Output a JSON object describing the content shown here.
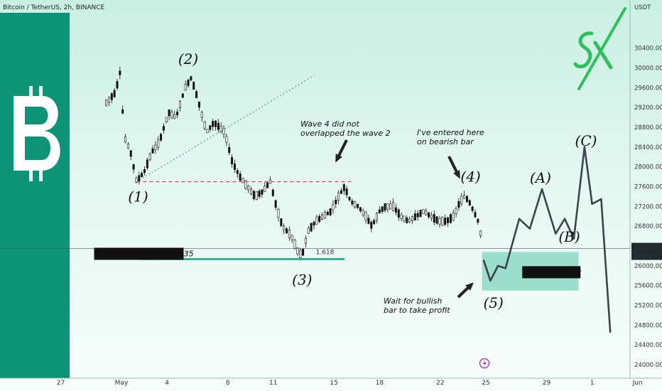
{
  "header": {
    "symbol": "Bitcoin / TetherUS, 2h, BINANCE"
  },
  "price_panel": {
    "currency": "USDT",
    "last_price": "26349.52",
    "countdown": "26:54"
  },
  "colors": {
    "brand_green": "#0d9375",
    "candle": "#111111",
    "wave_line": "#3b4448",
    "target_line": "#14a38a",
    "target_box": "#7ed6be",
    "dashed_red": "#e0454f",
    "logo_green": "#2ec15a"
  },
  "icons": {
    "sidebar": "bitcoin-logo-icon",
    "logo": "sx-logo-icon",
    "event": "lightning-icon"
  },
  "annotations": {
    "wave4_note": [
      "Wave 4 did not",
      "overlapped the wave 2"
    ],
    "entry_note": [
      "I've entered here",
      "on bearish bar"
    ],
    "profit_note": [
      "Wait for bullish",
      "bar to take profit"
    ],
    "wave3_target": "Wave 3 target = $26135",
    "wave5_target": "Wave 5 target",
    "fib_level": "1.618"
  },
  "chart_data": {
    "type": "candlestick",
    "ylim": [
      23900,
      31000
    ],
    "yticks": [
      24000,
      24400,
      24800,
      25200,
      25600,
      26000,
      26400,
      26800,
      27200,
      27600,
      28000,
      28400,
      28800,
      29200,
      29600,
      30000,
      30400
    ],
    "ytick_labels": [
      "24000.00",
      "24400.00",
      "24800.00",
      "25200.00",
      "25600.00",
      "26000.00",
      "26400.00",
      "26800.00",
      "27200.00",
      "27600.00",
      "28000.00",
      "28400.00",
      "28800.00",
      "29200.00",
      "29600.00",
      "30000.00",
      "30400.00"
    ],
    "xlim": [
      -4,
      37.5
    ],
    "xticks": [
      {
        "x": 0,
        "label": "27"
      },
      {
        "x": 4,
        "label": "May"
      },
      {
        "x": 7,
        "label": "4"
      },
      {
        "x": 11,
        "label": "8"
      },
      {
        "x": 14,
        "label": "11"
      },
      {
        "x": 18,
        "label": "15"
      },
      {
        "x": 21,
        "label": "18"
      },
      {
        "x": 25,
        "label": "22"
      },
      {
        "x": 28,
        "label": "25"
      },
      {
        "x": 32,
        "label": "29"
      },
      {
        "x": 35,
        "label": "1"
      },
      {
        "x": 38,
        "label": "Jun"
      }
    ],
    "price_path": [
      [
        3,
        29300
      ],
      [
        3.6,
        29500
      ],
      [
        3.9,
        29900
      ],
      [
        4.2,
        28600
      ],
      [
        4.6,
        28300
      ],
      [
        5,
        27700
      ],
      [
        5.5,
        27900
      ],
      [
        6,
        28300
      ],
      [
        6.5,
        28500
      ],
      [
        7.1,
        29100
      ],
      [
        7.6,
        29000
      ],
      [
        8.2,
        29600
      ],
      [
        8.6,
        29800
      ],
      [
        9,
        29400
      ],
      [
        9.6,
        28700
      ],
      [
        10.1,
        28900
      ],
      [
        10.8,
        28700
      ],
      [
        11.3,
        28100
      ],
      [
        11.8,
        27800
      ],
      [
        12.3,
        27600
      ],
      [
        12.8,
        27400
      ],
      [
        13.3,
        27500
      ],
      [
        13.8,
        27700
      ],
      [
        14.2,
        27200
      ],
      [
        14.6,
        26800
      ],
      [
        15.2,
        26600
      ],
      [
        15.6,
        26300
      ],
      [
        15.9,
        26200
      ],
      [
        16.3,
        26700
      ],
      [
        16.8,
        26900
      ],
      [
        17.3,
        27000
      ],
      [
        17.8,
        27100
      ],
      [
        18.3,
        27400
      ],
      [
        18.7,
        27600
      ],
      [
        19.1,
        27300
      ],
      [
        19.6,
        27200
      ],
      [
        20.1,
        27000
      ],
      [
        20.5,
        26800
      ],
      [
        21,
        27100
      ],
      [
        21.4,
        27200
      ],
      [
        21.9,
        27200
      ],
      [
        22.4,
        27000
      ],
      [
        22.9,
        26900
      ],
      [
        23.4,
        27000
      ],
      [
        23.9,
        27100
      ],
      [
        24.4,
        27000
      ],
      [
        24.9,
        26900
      ],
      [
        25.4,
        26900
      ],
      [
        25.9,
        27000
      ],
      [
        26.3,
        27300
      ],
      [
        26.6,
        27400
      ],
      [
        26.9,
        27300
      ],
      [
        27.2,
        27100
      ],
      [
        27.5,
        26900
      ],
      [
        27.8,
        26450
      ]
    ],
    "wave_projection": [
      [
        27.85,
        26120
      ],
      [
        28.3,
        25700
      ],
      [
        28.8,
        26000
      ],
      [
        29.3,
        25950
      ],
      [
        30.2,
        26950
      ],
      [
        30.9,
        26750
      ],
      [
        31.7,
        27550
      ],
      [
        32.6,
        26650
      ],
      [
        33.2,
        26950
      ],
      [
        33.8,
        26550
      ],
      [
        34.5,
        28400
      ],
      [
        35,
        27250
      ],
      [
        35.6,
        27350
      ],
      [
        36.2,
        24650
      ]
    ],
    "wave_labels": [
      {
        "label": "(1)",
        "x": 5.1,
        "y": 27300
      },
      {
        "label": "(2)",
        "x": 8.4,
        "y": 30080
      },
      {
        "label": "(3)",
        "x": 15.9,
        "y": 25620
      },
      {
        "label": "(4)",
        "x": 27.0,
        "y": 27700
      },
      {
        "label": "(5)",
        "x": 28.5,
        "y": 25150
      },
      {
        "label": "(A)",
        "x": 31.6,
        "y": 27680
      },
      {
        "label": "(B)",
        "x": 33.5,
        "y": 26490
      },
      {
        "label": "(C)",
        "x": 34.6,
        "y": 28430
      }
    ],
    "wave1_low": 27700,
    "wave3_target": 26135,
    "wave5_target_zone": [
      25500,
      26280
    ],
    "trendline": [
      [
        5,
        27700
      ],
      [
        16.7,
        29850
      ]
    ]
  }
}
